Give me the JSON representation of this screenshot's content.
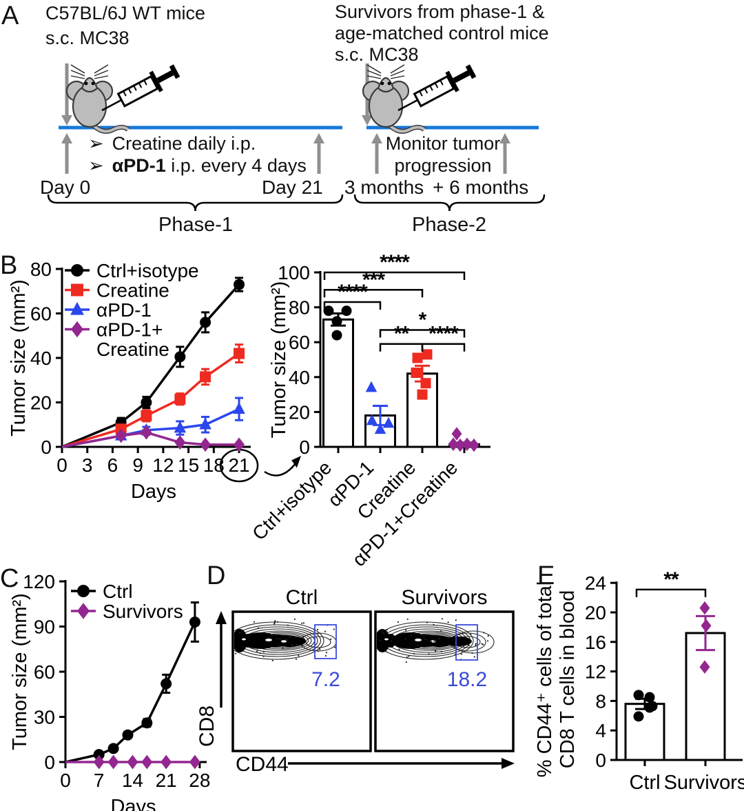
{
  "colors": {
    "black": "#000000",
    "red": "#ee2a21",
    "blue": "#2b46ed",
    "purple": "#93278f",
    "timeline_blue": "#1778d8",
    "arrow_gray": "#8f8f8f",
    "gate_blue": "#3a4ad9",
    "mouse_gray": "#bcbcbc"
  },
  "panel_a": {
    "label": "A",
    "left": {
      "title_line1": "C57BL/6J WT mice",
      "title_line2": "s.c. MC38",
      "bullet_glyph": "➢",
      "bullet1": "Creatine daily i.p.",
      "bullet2_bold": "αPD-1",
      "bullet2_rest": " i.p. every 4 days",
      "start_label": "Day 0",
      "end_label": "Day 21",
      "phase_label": "Phase-1"
    },
    "right": {
      "title_line1": "Survivors from phase-1 &",
      "title_line2": "age-matched control mice",
      "title_line3": "s.c. MC38",
      "note_line1": "Monitor tumor",
      "note_line2": "progression",
      "start_label": "3 months",
      "end_label": "+ 6 months",
      "phase_label": "Phase-2"
    }
  },
  "panel_b": {
    "label": "B"
  },
  "panel_c": {
    "label": "C"
  },
  "panel_d": {
    "label": "D"
  },
  "panel_e": {
    "label": "E"
  },
  "chart_data": [
    {
      "id": "b_line",
      "type": "line",
      "xlabel": "Days",
      "ylabel": "Tumor size (mm²)",
      "xlim": [
        0,
        22
      ],
      "ylim": [
        0,
        80
      ],
      "xticks": [
        0,
        3,
        6,
        9,
        12,
        15,
        18,
        21
      ],
      "yticks": [
        0,
        20,
        40,
        60,
        80
      ],
      "circled_xtick": 21,
      "legend_position": "top-left-inside",
      "series": [
        {
          "name": "Ctrl+isotype",
          "color": "black",
          "marker": "circle",
          "x": [
            0,
            7,
            10,
            14,
            17,
            21
          ],
          "y": [
            0,
            11,
            20,
            40.5,
            56,
            73
          ],
          "err": [
            0,
            2,
            2.5,
            4.5,
            4.5,
            3
          ]
        },
        {
          "name": "Creatine",
          "color": "red",
          "marker": "square",
          "x": [
            0,
            7,
            10,
            14,
            17,
            21
          ],
          "y": [
            0,
            8,
            14,
            21.5,
            31.5,
            42
          ],
          "err": [
            0,
            1.5,
            2.5,
            2.5,
            3.5,
            4
          ]
        },
        {
          "name": "αPD-1",
          "color": "blue",
          "marker": "triangle",
          "x": [
            0,
            7,
            10,
            14,
            17,
            21
          ],
          "y": [
            0,
            5,
            7.5,
            8.5,
            10,
            17
          ],
          "err": [
            0,
            1,
            1.5,
            3,
            3.5,
            5
          ]
        },
        {
          "name": "αPD-1+\nCreatine",
          "color": "purple",
          "marker": "diamond",
          "x": [
            0,
            7,
            10,
            14,
            17,
            21
          ],
          "y": [
            0,
            5,
            6.5,
            2,
            1,
            1
          ],
          "err": [
            0,
            0.8,
            1,
            0.5,
            0.5,
            0.5
          ]
        }
      ]
    },
    {
      "id": "b_bar",
      "type": "bar",
      "ylabel": "Tumor size (mm²)",
      "ylim": [
        0,
        100
      ],
      "yticks": [
        0,
        20,
        40,
        60,
        80,
        100
      ],
      "categories": [
        "Ctrl+isotype",
        "αPD-1",
        "Creatine",
        "αPD-1+Creatine"
      ],
      "values": [
        73,
        18,
        42,
        1.5
      ],
      "errors": [
        3.5,
        5.5,
        4.5,
        1
      ],
      "point_colors": [
        "black",
        "blue",
        "red",
        "purple"
      ],
      "point_markers": [
        "circle",
        "triangle",
        "square",
        "diamond"
      ],
      "points": [
        [
          78,
          78,
          72,
          64
        ],
        [
          34,
          15,
          13.5,
          10
        ],
        [
          53,
          51,
          42.5,
          36.5,
          30
        ],
        [
          7.5,
          1.5,
          1,
          1.5,
          1
        ]
      ],
      "significance": [
        {
          "from": 0,
          "to": 3,
          "label": "****",
          "y": 100,
          "x1off": -20
        },
        {
          "from": 0,
          "to": 2,
          "label": "***",
          "y": 90,
          "x1off": -20
        },
        {
          "from": 0,
          "to": 1,
          "label": "****",
          "y": 83,
          "x1off": -20
        },
        {
          "from": 1,
          "to": 3,
          "label": "*",
          "y": 67
        },
        {
          "from": 1,
          "to": 2,
          "label": "**",
          "y": 59
        },
        {
          "from": 2,
          "to": 3,
          "label": "****",
          "y": 59
        }
      ]
    },
    {
      "id": "c_line",
      "type": "line",
      "xlabel": "Days",
      "ylabel": "Tumor size (mm²)",
      "xlim": [
        0,
        29
      ],
      "ylim": [
        0,
        120
      ],
      "xticks": [
        0,
        7,
        14,
        21,
        28
      ],
      "yticks": [
        0,
        30,
        60,
        90,
        120
      ],
      "legend_position": "top-left-inside",
      "series": [
        {
          "name": "Ctrl",
          "color": "black",
          "marker": "circle",
          "x": [
            0,
            7,
            10,
            13,
            17,
            21,
            27
          ],
          "y": [
            0,
            5,
            9,
            18,
            26,
            52,
            93
          ],
          "err": [
            0,
            1,
            1.5,
            2,
            2.5,
            6,
            13
          ]
        },
        {
          "name": "Survivors",
          "color": "purple",
          "marker": "diamond",
          "x": [
            0,
            7,
            10,
            14,
            17,
            21,
            27
          ],
          "y": [
            0,
            0,
            0,
            0,
            0,
            0,
            0
          ],
          "err": [
            0,
            0,
            0,
            0,
            0,
            0,
            0
          ]
        }
      ]
    },
    {
      "id": "d_flow",
      "type": "flow_contour",
      "xlabel": "CD44",
      "ylabel": "CD8",
      "plots": [
        {
          "title": "Ctrl",
          "gate_value": "7.2"
        },
        {
          "title": "Survivors",
          "gate_value": "18.2"
        }
      ]
    },
    {
      "id": "e_bar",
      "type": "bar",
      "ylabel": "% CD44⁺ cells of total CD8 T cells in blood",
      "ylabel_lines": [
        "% CD44⁺ cells of total",
        "CD8 T cells in blood"
      ],
      "ylim": [
        0,
        24
      ],
      "yticks": [
        0,
        4,
        8,
        12,
        16,
        20,
        24
      ],
      "categories": [
        "Ctrl",
        "Survivors"
      ],
      "values": [
        7.6,
        17.2
      ],
      "errors": [
        0.7,
        2.3
      ],
      "point_colors": [
        "black",
        "purple"
      ],
      "point_markers": [
        "circle",
        "diamond"
      ],
      "points": [
        [
          8.8,
          8.5,
          7.3,
          7.1,
          5.9
        ],
        [
          20.6,
          18.2,
          12.6
        ]
      ],
      "significance": [
        {
          "from": 0,
          "to": 1,
          "label": "**",
          "y": 23.1,
          "x1off": -12
        }
      ]
    }
  ]
}
